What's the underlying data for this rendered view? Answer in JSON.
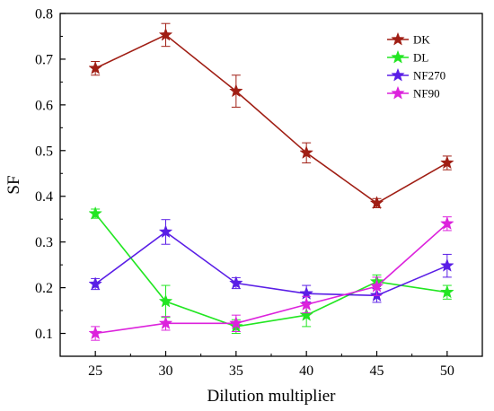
{
  "chart_data": {
    "type": "line",
    "title": "",
    "xlabel": "Dilution multiplier",
    "ylabel": "SF",
    "x": [
      25,
      30,
      35,
      40,
      45,
      50
    ],
    "xlim": [
      22.5,
      52.5
    ],
    "ylim": [
      0.05,
      0.8
    ],
    "xticks": [
      "25",
      "30",
      "35",
      "40",
      "45",
      "50"
    ],
    "yticks": [
      "0.1",
      "0.2",
      "0.3",
      "0.4",
      "0.5",
      "0.6",
      "0.7",
      "0.8"
    ],
    "grid": false,
    "legend_position": "top-right",
    "marker": "star",
    "series": [
      {
        "name": "DK",
        "color": "#a01e14",
        "values": [
          0.68,
          0.753,
          0.63,
          0.495,
          0.385,
          0.473
        ],
        "errors": [
          0.015,
          0.025,
          0.035,
          0.022,
          0.01,
          0.015
        ]
      },
      {
        "name": "DL",
        "color": "#22e622",
        "values": [
          0.362,
          0.17,
          0.115,
          0.14,
          0.213,
          0.19
        ],
        "errors": [
          0.01,
          0.035,
          0.015,
          0.025,
          0.015,
          0.015
        ]
      },
      {
        "name": "NF270",
        "color": "#5a1ee6",
        "values": [
          0.208,
          0.322,
          0.21,
          0.187,
          0.183,
          0.248
        ],
        "errors": [
          0.012,
          0.027,
          0.012,
          0.018,
          0.015,
          0.025
        ]
      },
      {
        "name": "NF90",
        "color": "#dc22dc",
        "values": [
          0.1,
          0.122,
          0.122,
          0.163,
          0.203,
          0.34
        ],
        "errors": [
          0.015,
          0.015,
          0.018,
          0.018,
          0.02,
          0.015
        ]
      }
    ]
  }
}
